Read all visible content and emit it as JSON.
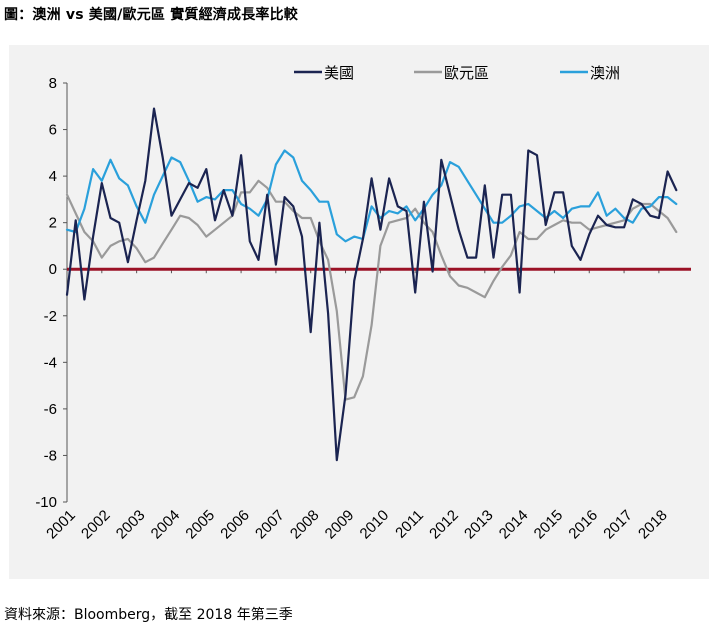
{
  "title": "圖：澳洲 vs 美國/歐元區  實質經濟成長率比較",
  "source": "資料來源：Bloomberg，截至 2018 年第三季",
  "colors": {
    "panel": "#f2f2f2",
    "us": "#1b2451",
    "euro": "#9a9a9a",
    "australia": "#2aa0db",
    "zero_line": "#9b1226"
  },
  "chart_data": {
    "type": "line",
    "title": "",
    "xlabel": "",
    "ylabel": "",
    "ylim": [
      -10,
      8
    ],
    "yticks": [
      -10,
      -8,
      -6,
      -4,
      -2,
      0,
      2,
      4,
      6,
      8
    ],
    "xlim": [
      2001.0,
      2018.75
    ],
    "xticks": [
      "2001",
      "2002",
      "2003",
      "2004",
      "2005",
      "2006",
      "2007",
      "2008",
      "2009",
      "2010",
      "2011",
      "2012",
      "2013",
      "2014",
      "2015",
      "2016",
      "2017",
      "2018"
    ],
    "grid": false,
    "legend_position": "top-right",
    "x": [
      2001.0,
      2001.25,
      2001.5,
      2001.75,
      2002.0,
      2002.25,
      2002.5,
      2002.75,
      2003.0,
      2003.25,
      2003.5,
      2003.75,
      2004.0,
      2004.25,
      2004.5,
      2004.75,
      2005.0,
      2005.25,
      2005.5,
      2005.75,
      2006.0,
      2006.25,
      2006.5,
      2006.75,
      2007.0,
      2007.25,
      2007.5,
      2007.75,
      2008.0,
      2008.25,
      2008.5,
      2008.75,
      2009.0,
      2009.25,
      2009.5,
      2009.75,
      2010.0,
      2010.25,
      2010.5,
      2010.75,
      2011.0,
      2011.25,
      2011.5,
      2011.75,
      2012.0,
      2012.25,
      2012.5,
      2012.75,
      2013.0,
      2013.25,
      2013.5,
      2013.75,
      2014.0,
      2014.25,
      2014.5,
      2014.75,
      2015.0,
      2015.25,
      2015.5,
      2015.75,
      2016.0,
      2016.25,
      2016.5,
      2016.75,
      2017.0,
      2017.25,
      2017.5,
      2017.75,
      2018.0,
      2018.25,
      2018.5
    ],
    "series": [
      {
        "name": "美國",
        "color": "#1b2451",
        "values": [
          -1.1,
          2.1,
          -1.3,
          1.4,
          3.7,
          2.2,
          2.0,
          0.3,
          2.1,
          3.8,
          6.9,
          4.8,
          2.3,
          3.0,
          3.7,
          3.5,
          4.3,
          2.1,
          3.4,
          2.3,
          4.9,
          1.2,
          0.4,
          3.2,
          0.2,
          3.1,
          2.7,
          1.4,
          -2.7,
          2.0,
          -1.9,
          -8.2,
          -5.4,
          -0.5,
          1.3,
          3.9,
          1.7,
          3.9,
          2.7,
          2.5,
          -1.0,
          2.9,
          -0.1,
          4.7,
          3.2,
          1.7,
          0.5,
          0.5,
          3.6,
          0.5,
          3.2,
          3.2,
          -1.0,
          5.1,
          4.9,
          1.9,
          3.3,
          3.3,
          1.0,
          0.4,
          1.5,
          2.3,
          1.9,
          1.8,
          1.8,
          3.0,
          2.8,
          2.3,
          2.2,
          4.2,
          3.4
        ]
      },
      {
        "name": "歐元區",
        "color": "#9a9a9a",
        "values": [
          3.2,
          2.4,
          1.6,
          1.2,
          0.5,
          1.0,
          1.2,
          1.3,
          0.9,
          0.3,
          0.5,
          1.1,
          1.7,
          2.3,
          2.2,
          1.9,
          1.4,
          1.7,
          2.0,
          2.3,
          3.3,
          3.3,
          3.8,
          3.5,
          2.9,
          2.9,
          2.5,
          2.2,
          2.2,
          1.2,
          0.4,
          -1.8,
          -5.6,
          -5.5,
          -4.6,
          -2.4,
          1.0,
          2.0,
          2.1,
          2.2,
          2.6,
          2.0,
          1.6,
          0.6,
          -0.3,
          -0.7,
          -0.8,
          -1.0,
          -1.2,
          -0.5,
          0.1,
          0.6,
          1.6,
          1.3,
          1.3,
          1.7,
          1.9,
          2.1,
          2.0,
          2.0,
          1.7,
          1.8,
          1.9,
          2.0,
          2.1,
          2.6,
          2.8,
          2.8,
          2.5,
          2.2,
          1.6
        ]
      },
      {
        "name": "澳洲",
        "color": "#2aa0db",
        "values": [
          1.7,
          1.6,
          2.6,
          4.3,
          3.8,
          4.7,
          3.9,
          3.6,
          2.7,
          2.0,
          3.2,
          4.0,
          4.8,
          4.6,
          3.8,
          2.9,
          3.1,
          3.0,
          3.4,
          3.4,
          2.8,
          2.6,
          2.3,
          3.0,
          4.5,
          5.1,
          4.8,
          3.8,
          3.4,
          2.9,
          2.9,
          1.5,
          1.2,
          1.4,
          1.3,
          2.7,
          2.2,
          2.5,
          2.4,
          2.7,
          2.1,
          2.6,
          3.2,
          3.6,
          4.6,
          4.4,
          3.8,
          3.2,
          2.6,
          2.0,
          2.0,
          2.3,
          2.7,
          2.8,
          2.5,
          2.2,
          2.5,
          2.2,
          2.6,
          2.7,
          2.7,
          3.3,
          2.3,
          2.6,
          2.2,
          2.0,
          2.6,
          2.7,
          3.1,
          3.1,
          2.8
        ]
      }
    ]
  }
}
